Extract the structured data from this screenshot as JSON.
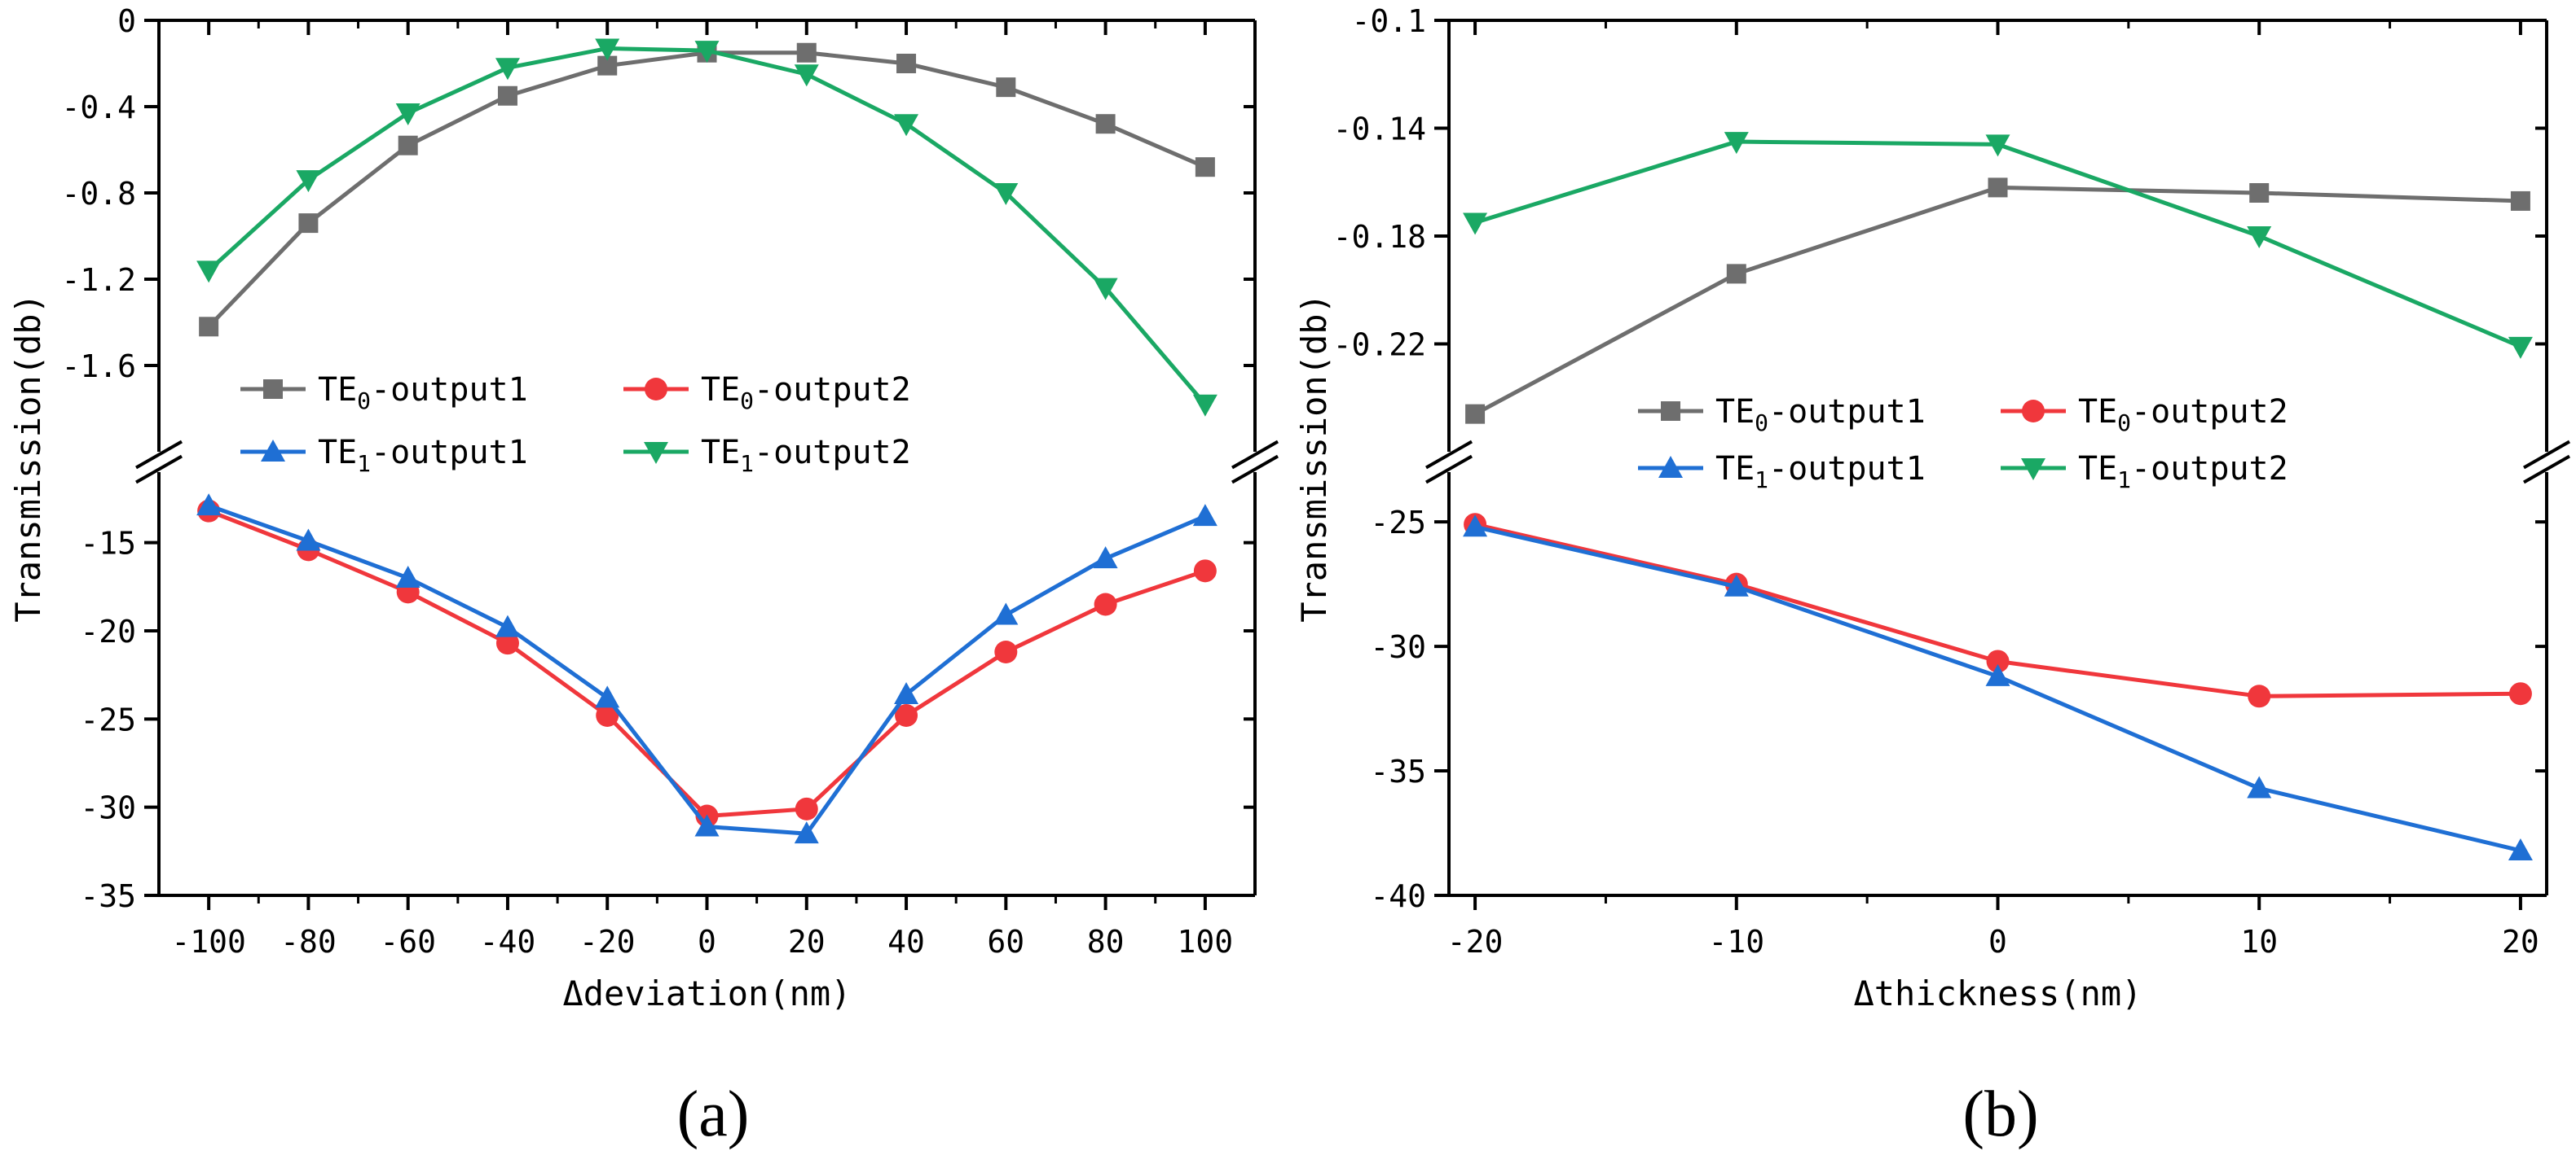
{
  "figure": {
    "colors": {
      "te0_out1": "#6e6e6e",
      "te0_out2": "#f0373c",
      "te1_out1": "#1f6fd4",
      "te1_out2": "#1aa864"
    }
  },
  "chart_data": [
    {
      "type": "line",
      "panel_label": "(a)",
      "xlabel": "Δdeviation(nm)",
      "ylabel": "Transmission(db)",
      "broken_axis": true,
      "xlim": [
        -110,
        110
      ],
      "x": [
        -100,
        -80,
        -60,
        -40,
        -20,
        0,
        20,
        40,
        60,
        80,
        100
      ],
      "x_ticks": [
        "-100",
        "-80",
        "-60",
        "-40",
        "-20",
        "0",
        "20",
        "40",
        "60",
        "80",
        "100"
      ],
      "upper_ylim": [
        -2.0,
        0
      ],
      "upper_yticks": [
        "0",
        "-0.4",
        "-0.8",
        "-1.2",
        "-1.6"
      ],
      "lower_ylim": [
        -35,
        -11
      ],
      "lower_yticks": [
        "-15",
        "-20",
        "-25",
        "-30",
        "-35"
      ],
      "legend": [
        {
          "key": "te0_out1",
          "sub": "0",
          "pre": "TE",
          "post": "-output1"
        },
        {
          "key": "te0_out2",
          "sub": "0",
          "pre": "TE",
          "post": "-output2"
        },
        {
          "key": "te1_out1",
          "sub": "1",
          "pre": "TE",
          "post": "-output1"
        },
        {
          "key": "te1_out2",
          "sub": "1",
          "pre": "TE",
          "post": "-output2"
        }
      ],
      "series": [
        {
          "name": "TE0-output1",
          "key": "te0_out1",
          "segment": "upper",
          "marker": "square",
          "values": [
            -1.42,
            -0.94,
            -0.58,
            -0.35,
            -0.21,
            -0.15,
            -0.15,
            -0.2,
            -0.31,
            -0.48,
            -0.68
          ]
        },
        {
          "name": "TE1-output2",
          "key": "te1_out2",
          "segment": "upper",
          "marker": "triangle-down",
          "values": [
            -1.16,
            -0.74,
            -0.43,
            -0.22,
            -0.13,
            -0.14,
            -0.25,
            -0.48,
            -0.8,
            -1.24,
            -1.78
          ]
        },
        {
          "name": "TE0-output2",
          "key": "te0_out2",
          "segment": "lower",
          "marker": "circle",
          "values": [
            -13.2,
            -15.4,
            -17.8,
            -20.7,
            -24.8,
            -30.5,
            -30.1,
            -24.8,
            -21.2,
            -18.5,
            -16.6
          ]
        },
        {
          "name": "TE1-output1",
          "key": "te1_out1",
          "segment": "lower",
          "marker": "triangle-up",
          "values": [
            -12.9,
            -14.9,
            -17.0,
            -19.8,
            -23.8,
            -31.1,
            -31.5,
            -23.6,
            -19.1,
            -15.9,
            -13.5
          ]
        }
      ]
    },
    {
      "type": "line",
      "panel_label": "(b)",
      "xlabel": "Δthickness(nm)",
      "ylabel": "Transmission(db)",
      "broken_axis": true,
      "xlim": [
        -21,
        21
      ],
      "x": [
        -20,
        -10,
        0,
        10,
        20
      ],
      "x_ticks": [
        "-20",
        "-10",
        "0",
        "10",
        "20"
      ],
      "upper_ylim": [
        -0.26,
        -0.1
      ],
      "upper_yticks": [
        "-0.1",
        "-0.14",
        "-0.18",
        "-0.22"
      ],
      "lower_ylim": [
        -40,
        -23
      ],
      "lower_yticks": [
        "-25",
        "-30",
        "-35",
        "-40"
      ],
      "legend": [
        {
          "key": "te0_out1",
          "sub": "0",
          "pre": "TE",
          "post": "-output1"
        },
        {
          "key": "te0_out2",
          "sub": "0",
          "pre": "TE",
          "post": "-output2"
        },
        {
          "key": "te1_out1",
          "sub": "1",
          "pre": "TE",
          "post": "-output1"
        },
        {
          "key": "te1_out2",
          "sub": "1",
          "pre": "TE",
          "post": "-output2"
        }
      ],
      "series": [
        {
          "name": "TE0-output1",
          "key": "te0_out1",
          "segment": "upper",
          "marker": "square",
          "values": [
            -0.246,
            -0.194,
            -0.162,
            -0.164,
            -0.167
          ]
        },
        {
          "name": "TE1-output2",
          "key": "te1_out2",
          "segment": "upper",
          "marker": "triangle-down",
          "values": [
            -0.175,
            -0.145,
            -0.146,
            -0.18,
            -0.221
          ]
        },
        {
          "name": "TE0-output2",
          "key": "te0_out2",
          "segment": "lower",
          "marker": "circle",
          "values": [
            -25.1,
            -27.5,
            -30.6,
            -32.0,
            -31.9
          ]
        },
        {
          "name": "TE1-output1",
          "key": "te1_out1",
          "segment": "lower",
          "marker": "triangle-up",
          "values": [
            -25.2,
            -27.6,
            -31.2,
            -35.7,
            -38.2
          ]
        }
      ]
    }
  ]
}
